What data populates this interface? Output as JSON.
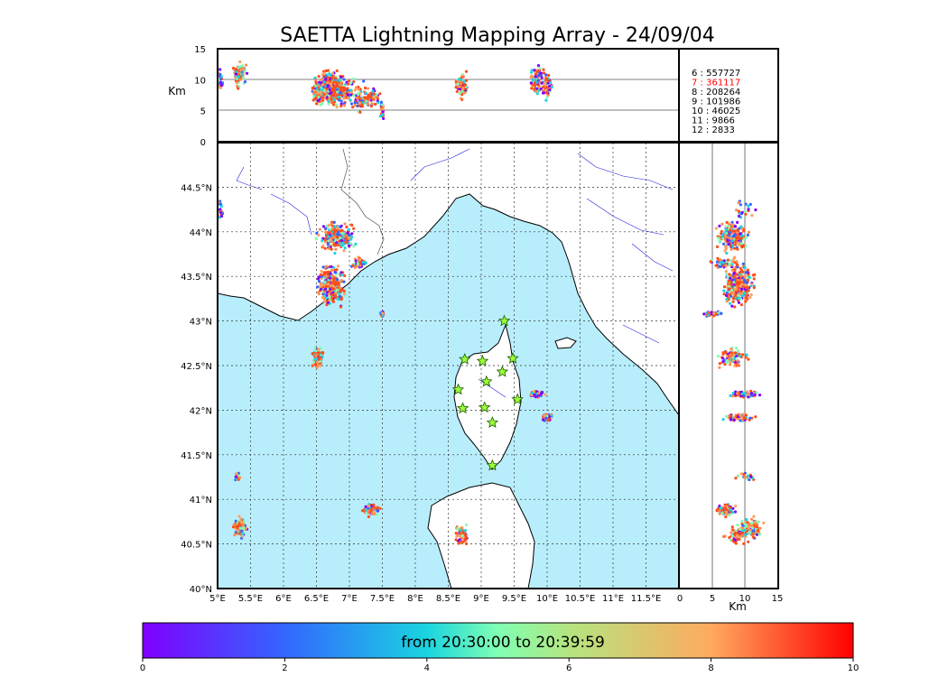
{
  "chart_data": {
    "type": "scatter",
    "title": "SAETTA Lightning Mapping Array - 24/09/04",
    "map": {
      "lon_range": [
        5,
        12
      ],
      "lat_range": [
        40,
        45
      ],
      "lon_ticks": [
        "5°E",
        "5.5°E",
        "6°E",
        "6.5°E",
        "7°E",
        "7.5°E",
        "8°E",
        "8.5°E",
        "9°E",
        "9.5°E",
        "10°E",
        "10.5°E",
        "11°E",
        "11.5°E"
      ],
      "lat_ticks": [
        "40°N",
        "40.5°N",
        "41°N",
        "41.5°N",
        "42°N",
        "42.5°N",
        "43°N",
        "43.5°N",
        "44°N",
        "44.5°N"
      ],
      "lat_tick_values": [
        40,
        40.5,
        41,
        41.5,
        42,
        42.5,
        43,
        43.5,
        44,
        44.5
      ],
      "grid": true,
      "sea_color": "#b8eefb",
      "land_color": "#ffffff"
    },
    "altitude_panel": {
      "ylabel": "Km",
      "y_ticks": [
        "15",
        "10",
        "5",
        "0"
      ],
      "y_range": [
        0,
        15
      ]
    },
    "right_panel": {
      "xlabel": "Km",
      "x_ticks": [
        "0",
        "5",
        "10",
        "15"
      ],
      "x_range": [
        0,
        15
      ]
    },
    "station_counts": [
      {
        "label": "6  :   557727",
        "highlight": false
      },
      {
        "label": "7  :   361117",
        "highlight": true
      },
      {
        "label": "8  :   208264",
        "highlight": false
      },
      {
        "label": "9  :   101986",
        "highlight": false
      },
      {
        "label": "10 :    46025",
        "highlight": false
      },
      {
        "label": "11 :     9866",
        "highlight": false
      },
      {
        "label": "12 :     2833",
        "highlight": false
      }
    ],
    "stations": [
      [
        9.35,
        43.0
      ],
      [
        8.75,
        42.57
      ],
      [
        9.02,
        42.55
      ],
      [
        9.48,
        42.58
      ],
      [
        9.32,
        42.43
      ],
      [
        9.08,
        42.32
      ],
      [
        8.65,
        42.23
      ],
      [
        9.55,
        42.12
      ],
      [
        8.72,
        42.02
      ],
      [
        9.05,
        42.03
      ],
      [
        9.17,
        41.86
      ],
      [
        9.17,
        41.38
      ]
    ],
    "lightning_clusters": [
      {
        "lon": 6.8,
        "lat": 43.95,
        "dlon": 0.35,
        "dlat": 0.2,
        "z": 8,
        "dz": 3,
        "n": 240
      },
      {
        "lon": 6.72,
        "lat": 43.4,
        "dlon": 0.25,
        "dlat": 0.28,
        "z": 9,
        "dz": 3,
        "n": 300
      },
      {
        "lon": 7.15,
        "lat": 43.65,
        "dlon": 0.15,
        "dlat": 0.08,
        "z": 7,
        "dz": 3,
        "n": 50
      },
      {
        "lon": 6.52,
        "lat": 42.6,
        "dlon": 0.1,
        "dlat": 0.14,
        "z": 8,
        "dz": 3,
        "n": 80
      },
      {
        "lon": 5.35,
        "lat": 40.68,
        "dlon": 0.12,
        "dlat": 0.15,
        "z": 11,
        "dz": 2,
        "n": 90
      },
      {
        "lon": 5.3,
        "lat": 41.25,
        "dlon": 0.05,
        "dlat": 0.05,
        "z": 10,
        "dz": 2,
        "n": 20
      },
      {
        "lon": 5.05,
        "lat": 44.25,
        "dlon": 0.05,
        "dlat": 0.12,
        "z": 10,
        "dz": 2,
        "n": 20
      },
      {
        "lon": 7.35,
        "lat": 40.88,
        "dlon": 0.18,
        "dlat": 0.1,
        "z": 7,
        "dz": 2,
        "n": 60
      },
      {
        "lon": 7.5,
        "lat": 43.08,
        "dlon": 0.04,
        "dlat": 0.04,
        "z": 5,
        "dz": 3,
        "n": 30
      },
      {
        "lon": 8.7,
        "lat": 40.6,
        "dlon": 0.12,
        "dlat": 0.14,
        "z": 9,
        "dz": 3,
        "n": 70
      },
      {
        "lon": 9.85,
        "lat": 42.18,
        "dlon": 0.15,
        "dlat": 0.05,
        "z": 10,
        "dz": 3,
        "n": 80
      },
      {
        "lon": 10.0,
        "lat": 41.92,
        "dlon": 0.1,
        "dlat": 0.05,
        "z": 9,
        "dz": 3,
        "n": 60
      }
    ],
    "colorbar": {
      "label": "from 20:30:00 to 20:39:59",
      "ticks": [
        "0",
        "2",
        "4",
        "6",
        "8",
        "10"
      ],
      "range": [
        0,
        10
      ]
    }
  }
}
